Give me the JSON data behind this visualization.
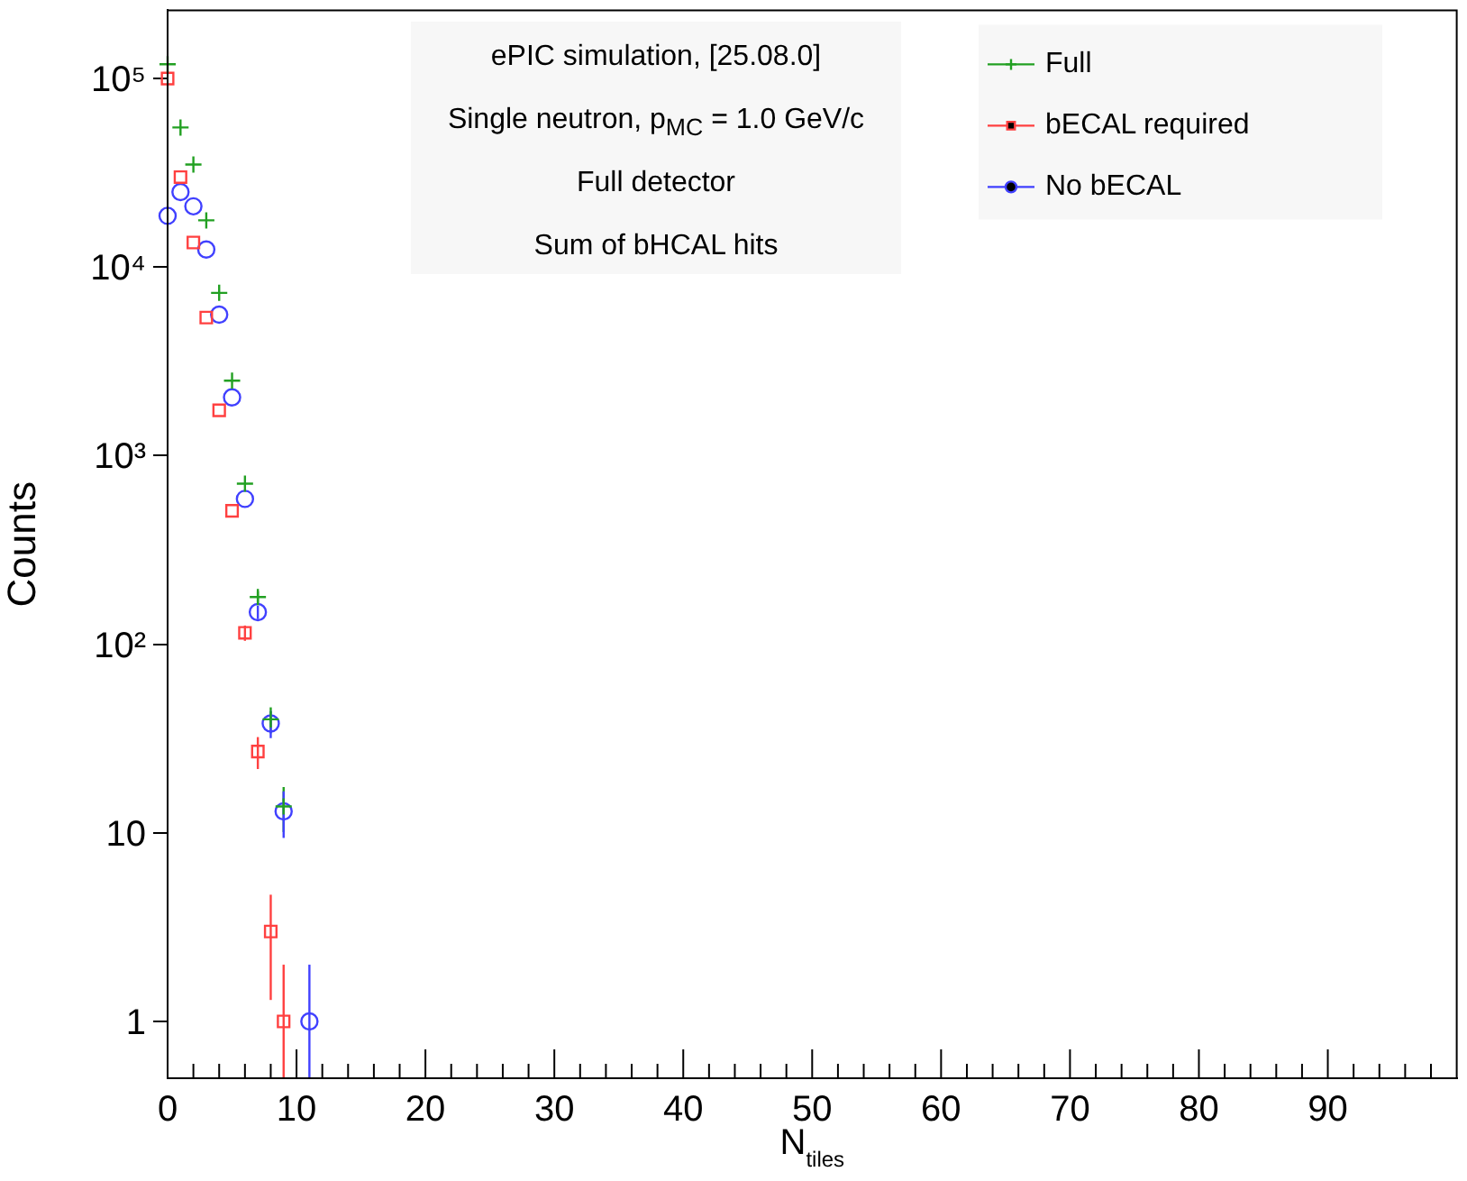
{
  "chart_data": {
    "type": "scatter",
    "xlabel": "N$_{tiles}$",
    "ylabel": "Counts",
    "annotations": [
      "ePIC simulation, [25.08.0]",
      "Single neutron, p$_{MC}$ = 1.0 GeV/c",
      "Full detector",
      "Sum of bHCAL hits"
    ],
    "log": "y",
    "grid": false,
    "legend": "top right",
    "xlim": [
      0,
      100
    ],
    "ylim": [
      0.5,
      230000
    ],
    "xticks": [
      0,
      {
        "value": 2,
        "label": null
      },
      {
        "value": 4,
        "label": null
      },
      {
        "value": 6,
        "label": null
      },
      {
        "value": 8,
        "label": null
      },
      10,
      {
        "value": 12,
        "label": null
      },
      {
        "value": 14,
        "label": null
      },
      {
        "value": 16,
        "label": null
      },
      {
        "value": 18,
        "label": null
      },
      20,
      {
        "value": 22,
        "label": null
      },
      {
        "value": 24,
        "label": null
      },
      {
        "value": 26,
        "label": null
      },
      {
        "value": 28,
        "label": null
      },
      30,
      {
        "value": 32,
        "label": null
      },
      {
        "value": 34,
        "label": null
      },
      {
        "value": 36,
        "label": null
      },
      {
        "value": 38,
        "label": null
      },
      40,
      {
        "value": 42,
        "label": null
      },
      {
        "value": 44,
        "label": null
      },
      {
        "value": 46,
        "label": null
      },
      {
        "value": 48,
        "label": null
      },
      50,
      {
        "value": 52,
        "label": null
      },
      {
        "value": 54,
        "label": null
      },
      {
        "value": 56,
        "label": null
      },
      {
        "value": 58,
        "label": null
      },
      60,
      {
        "value": 62,
        "label": null
      },
      {
        "value": 64,
        "label": null
      },
      {
        "value": 66,
        "label": null
      },
      {
        "value": 68,
        "label": null
      },
      70,
      {
        "value": 72,
        "label": null
      },
      {
        "value": 74,
        "label": null
      },
      {
        "value": 76,
        "label": null
      },
      {
        "value": 78,
        "label": null
      },
      80,
      {
        "value": 82,
        "label": null
      },
      {
        "value": 84,
        "label": null
      },
      {
        "value": 86,
        "label": null
      },
      {
        "value": 88,
        "label": null
      },
      90,
      {
        "value": 92,
        "label": null
      },
      {
        "value": 94,
        "label": null
      },
      {
        "value": 96,
        "label": null
      },
      {
        "value": 98,
        "label": null
      }
    ],
    "yticks": [
      1,
      10,
      {
        "value": 100,
        "label": "10²"
      },
      {
        "value": 1000,
        "label": "10³"
      },
      {
        "value": 10000,
        "label": "10⁴"
      },
      {
        "value": 100000,
        "label": "10⁵"
      }
    ],
    "series": [
      {
        "name": "Full",
        "color": "#22a022",
        "marker": "cross",
        "x": [
          0,
          1,
          2,
          3,
          4,
          5,
          6,
          7,
          8,
          9
        ],
        "values": [
          119000,
          55000,
          35000,
          17700,
          7300,
          2500,
          710,
          178,
          40,
          13.8
        ],
        "errors": [
          null,
          null,
          null,
          null,
          null,
          null,
          null,
          13,
          6.3,
          3.7
        ]
      },
      {
        "name": "bECAL required",
        "color": "#ff4040",
        "marker": "square",
        "x": [
          0,
          1,
          2,
          3,
          4,
          5,
          6,
          7,
          8,
          9
        ],
        "values": [
          100000,
          30000,
          13500,
          5400,
          1740,
          510,
          115,
          27,
          3,
          1
        ],
        "errors": [
          null,
          null,
          null,
          null,
          null,
          null,
          10.7,
          5.2,
          1.7,
          [
            0.5,
            2
          ]
        ]
      },
      {
        "name": "No bECAL",
        "color": "#4040ff",
        "marker": "circle",
        "x": [
          0,
          1,
          2,
          3,
          4,
          5,
          6,
          7,
          8,
          9,
          11
        ],
        "values": [
          18700,
          25000,
          21000,
          12400,
          5600,
          2040,
          590,
          148,
          38,
          13,
          1
        ],
        "errors": [
          null,
          null,
          null,
          null,
          null,
          null,
          null,
          12,
          6.2,
          3.6,
          [
            0.5,
            2
          ]
        ]
      }
    ]
  }
}
